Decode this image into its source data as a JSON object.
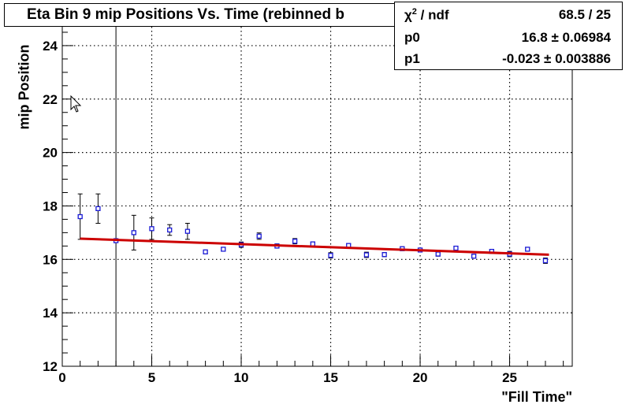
{
  "title": "Eta Bin 9 mip Positions Vs. Time (rebinned b",
  "stats": {
    "rows": [
      {
        "label_main": "χ",
        "label_sup": "2",
        "label_tail": " / ndf",
        "value": "68.5 / 25"
      },
      {
        "label_main": "p0",
        "label_sup": "",
        "label_tail": "",
        "value": "16.8 ± 0.06984"
      },
      {
        "label_main": "p1",
        "label_sup": "",
        "label_tail": "",
        "value": "-0.023 ± 0.003886"
      }
    ]
  },
  "chart_data": {
    "type": "scatter",
    "title": "Eta Bin 9 mip Positions Vs. Time (rebinned b",
    "xlabel": "\"Fill Time\"",
    "ylabel": "mip Position",
    "xlim": [
      0,
      28.5
    ],
    "ylim": [
      12,
      25
    ],
    "x_ticks": [
      0,
      5,
      10,
      15,
      20,
      25
    ],
    "y_ticks": [
      12,
      14,
      16,
      18,
      20,
      22,
      24
    ],
    "grid": true,
    "vertical_line_x": 3,
    "points": [
      {
        "x": 1,
        "y": 17.6,
        "err": 0.85
      },
      {
        "x": 2,
        "y": 17.9,
        "err": 0.55
      },
      {
        "x": 3,
        "y": 16.7,
        "err": 0.05
      },
      {
        "x": 4,
        "y": 17.0,
        "err": 0.65
      },
      {
        "x": 5,
        "y": 17.15,
        "err": 0.4
      },
      {
        "x": 6,
        "y": 17.1,
        "err": 0.2
      },
      {
        "x": 7,
        "y": 17.05,
        "err": 0.3
      },
      {
        "x": 8,
        "y": 16.28,
        "err": 0.07
      },
      {
        "x": 9,
        "y": 16.38,
        "err": 0.07
      },
      {
        "x": 10,
        "y": 16.55,
        "err": 0.1
      },
      {
        "x": 11,
        "y": 16.87,
        "err": 0.12
      },
      {
        "x": 12,
        "y": 16.5,
        "err": 0.08
      },
      {
        "x": 13,
        "y": 16.68,
        "err": 0.1
      },
      {
        "x": 14,
        "y": 16.58,
        "err": 0.07
      },
      {
        "x": 15,
        "y": 16.15,
        "err": 0.1
      },
      {
        "x": 16,
        "y": 16.52,
        "err": 0.07
      },
      {
        "x": 17,
        "y": 16.17,
        "err": 0.1
      },
      {
        "x": 18,
        "y": 16.18,
        "err": 0.08
      },
      {
        "x": 19,
        "y": 16.4,
        "err": 0.07
      },
      {
        "x": 20,
        "y": 16.35,
        "err": 0.07
      },
      {
        "x": 21,
        "y": 16.2,
        "err": 0.08
      },
      {
        "x": 22,
        "y": 16.42,
        "err": 0.07
      },
      {
        "x": 23,
        "y": 16.12,
        "err": 0.07
      },
      {
        "x": 24,
        "y": 16.3,
        "err": 0.06
      },
      {
        "x": 25,
        "y": 16.2,
        "err": 0.1
      },
      {
        "x": 26,
        "y": 16.38,
        "err": 0.07
      },
      {
        "x": 27,
        "y": 15.95,
        "err": 0.1
      }
    ],
    "fit": {
      "p0": 16.8,
      "p1": -0.023,
      "x_range": [
        1,
        27.2
      ]
    },
    "colors": {
      "marker": "#1b1bd6",
      "fit": "#cc0000",
      "axis": "#000000",
      "grid": "#000000"
    }
  }
}
